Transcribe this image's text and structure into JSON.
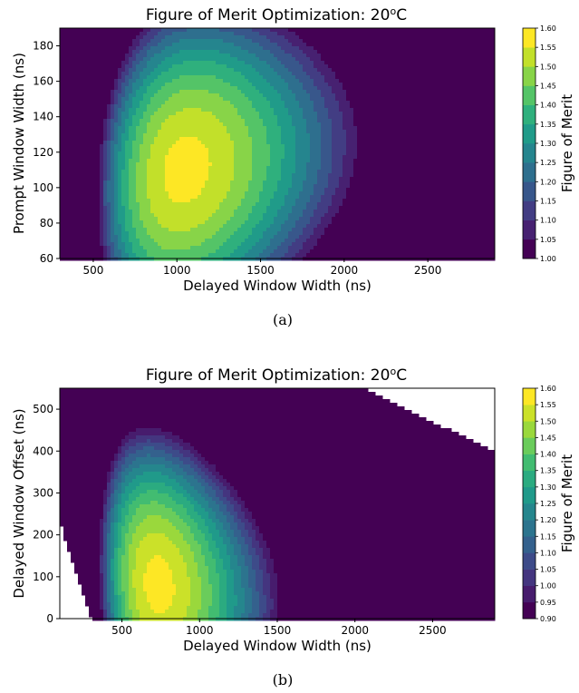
{
  "chart_data": [
    {
      "type": "contour",
      "title": "Figure of Merit Optimization: 20",
      "title_superscript": "o",
      "title_unit": "C",
      "xlabel": "Delayed Window Width (ns)",
      "ylabel": "Prompt Window Width (ns)",
      "xlim": [
        300,
        2900
      ],
      "ylim": [
        60,
        190
      ],
      "xticks": [
        500,
        1000,
        1500,
        2000,
        2500
      ],
      "yticks": [
        60,
        80,
        100,
        120,
        140,
        160,
        180
      ],
      "colorbar_label": "Figure of Merit",
      "colorbar_levels": [
        1.0,
        1.05,
        1.1,
        1.15,
        1.2,
        1.25,
        1.3,
        1.35,
        1.4,
        1.45,
        1.5,
        1.55,
        1.6
      ],
      "colorbar_ticks": [
        "1.00",
        "1.05",
        "1.10",
        "1.15",
        "1.20",
        "1.25",
        "1.30",
        "1.35",
        "1.40",
        "1.45",
        "1.50",
        "1.55",
        "1.60"
      ],
      "colormap": "viridis",
      "peak": {
        "x": 1050,
        "y": 110,
        "value": 1.57
      },
      "caption": "(a)"
    },
    {
      "type": "contour",
      "title": "Figure of Merit Optimization: 20",
      "title_superscript": "o",
      "title_unit": "C",
      "xlabel": "Delayed Window Width (ns)",
      "ylabel": "Delayed Window Offset (ns)",
      "xlim": [
        100,
        2900
      ],
      "ylim": [
        0,
        550
      ],
      "xticks": [
        500,
        1000,
        1500,
        2000,
        2500
      ],
      "yticks": [
        0,
        100,
        200,
        300,
        400,
        500
      ],
      "colorbar_label": "Figure of Merit",
      "colorbar_levels": [
        0.9,
        0.95,
        1.0,
        1.05,
        1.1,
        1.15,
        1.2,
        1.25,
        1.3,
        1.35,
        1.4,
        1.45,
        1.5,
        1.55,
        1.6
      ],
      "colorbar_ticks": [
        "0.90",
        "0.95",
        "1.00",
        "1.05",
        "1.10",
        "1.15",
        "1.20",
        "1.25",
        "1.30",
        "1.35",
        "1.40",
        "1.45",
        "1.50",
        "1.55",
        "1.60"
      ],
      "colormap": "viridis",
      "peak": {
        "x": 750,
        "y": 80,
        "value": 1.57
      },
      "caption": "(b)"
    }
  ],
  "colors": {
    "viridis_stops": [
      "#440154",
      "#482878",
      "#3e4989",
      "#31688e",
      "#26828e",
      "#1f9e89",
      "#35b779",
      "#6ece58",
      "#b5de2b",
      "#fde725"
    ]
  }
}
